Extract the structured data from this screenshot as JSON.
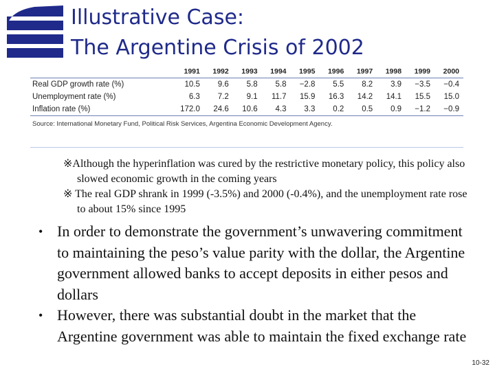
{
  "slide": {
    "title_line1": "Illustrative Case:",
    "title_line2": "The Argentine Crisis of 2002",
    "page_number": "10-32",
    "logo_icon": "blue-wave-logo-icon"
  },
  "table": {
    "years": [
      "1991",
      "1992",
      "1993",
      "1994",
      "1995",
      "1996",
      "1997",
      "1998",
      "1999",
      "2000"
    ],
    "rows": [
      {
        "label": "Real GDP growth rate (%)",
        "values": [
          "10.5",
          "9.6",
          "5.8",
          "5.8",
          "−2.8",
          "5.5",
          "8.2",
          "3.9",
          "−3.5",
          "−0.4"
        ]
      },
      {
        "label": "Unemployment rate (%)",
        "values": [
          "6.3",
          "7.2",
          "9.1",
          "11.7",
          "15.9",
          "16.3",
          "14.2",
          "14.1",
          "15.5",
          "15.0"
        ]
      },
      {
        "label": "Inflation rate (%)",
        "values": [
          "172.0",
          "24.6",
          "10.6",
          "4.3",
          "3.3",
          "0.2",
          "0.5",
          "0.9",
          "−1.2",
          "−0.9"
        ]
      }
    ],
    "source": "Source: International Monetary Fund, Political Risk Services, Argentina Economic Development Agency."
  },
  "notes": [
    "※Although the hyperinflation was cured by the restrictive monetary policy, this policy also slowed economic growth in the coming years",
    "※ The real GDP shrank in 1999 (-3.5%) and 2000 (-0.4%), and the unemployment rate rose to about 15% since 1995"
  ],
  "bullets": [
    "In order to demonstrate the government’s unwavering commitment to maintaining the peso’s value parity with the dollar, the Argentine government allowed banks to accept deposits in either pesos and dollars",
    "However, there was substantial doubt in the market that the Argentine government was able to maintain the fixed exchange rate"
  ],
  "colors": {
    "title": "#1f2a8a",
    "logo": "#1f2a8a",
    "rule": "#6d7fb3"
  }
}
